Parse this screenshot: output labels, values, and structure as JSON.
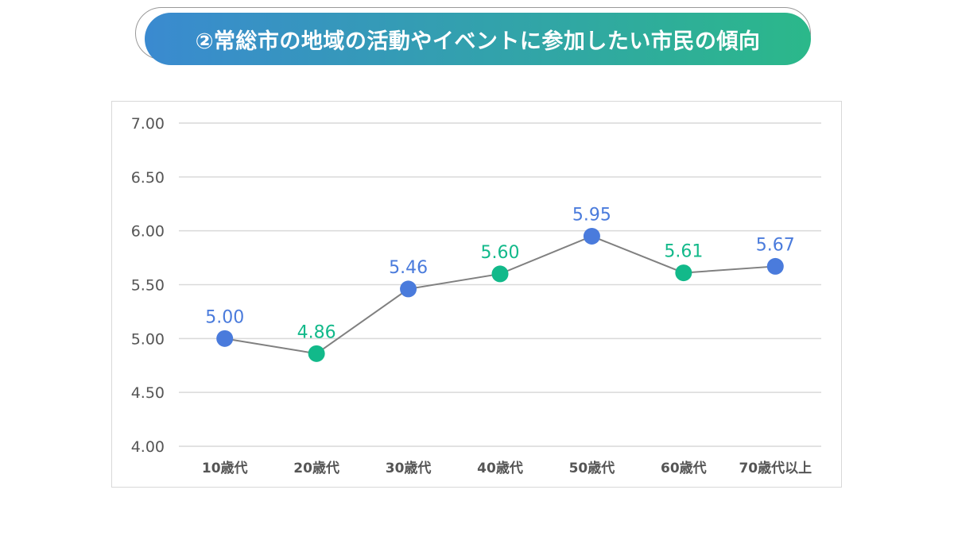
{
  "title": "②常総市の地域の活動やイベントに参加したい市民の傾向",
  "chart_data": {
    "type": "line",
    "title": "②常総市の地域の活動やイベントに参加したい市民の傾向",
    "categories": [
      "10歳代",
      "20歳代",
      "30歳代",
      "40歳代",
      "50歳代",
      "60歳代",
      "70歳代以上"
    ],
    "values": [
      5.0,
      4.86,
      5.46,
      5.6,
      5.95,
      5.61,
      5.67
    ],
    "labels": [
      "5.00",
      "4.86",
      "5.46",
      "5.60",
      "5.95",
      "5.61",
      "5.67"
    ],
    "point_colors": [
      "#4a7bdc",
      "#12b98a",
      "#4a7bdc",
      "#12b98a",
      "#4a7bdc",
      "#12b98a",
      "#4a7bdc"
    ],
    "line_color": "#808080",
    "yticks": [
      "7.00",
      "6.50",
      "6.00",
      "5.50",
      "5.00",
      "4.50",
      "4.00"
    ],
    "ylim": [
      4.0,
      7.0
    ],
    "grid": true,
    "legend": "none"
  }
}
